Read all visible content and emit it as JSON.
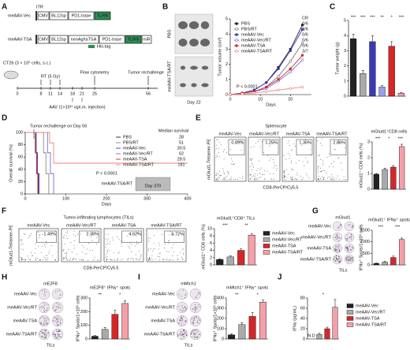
{
  "panel_labels": [
    "A",
    "B",
    "C",
    "D",
    "E",
    "F",
    "G",
    "H",
    "I",
    "J"
  ],
  "panel_a": {
    "constructs": [
      {
        "name": "meAAV-Vec",
        "parts": [
          "CMV",
          "BL12sp",
          "PD1-trase",
          "TLR9i"
        ]
      },
      {
        "name": "meAAV-TSA",
        "parts": [
          "CMV",
          "BL12sp",
          "neoAg/taTSA",
          "PD1-trase",
          "TLR9i"
        ]
      }
    ],
    "itr": "ITR",
    "mir": "miR",
    "his_tag": "His-tag",
    "cells": "CT26 (3 × 10⁶ cells, s.c.)",
    "rt": "RT (5 Gy)",
    "flow": "Flow cytometry",
    "rechallenge": "Tumor rechallenge",
    "days": [
      "0",
      "8",
      "11",
      "14",
      "18",
      "21",
      "25",
      "56"
    ],
    "aav": "AAV (1×10¹¹ vg/i.m. injection)"
  },
  "panel_b": {
    "groups": [
      "PBS",
      "meAAV-TSA/RT"
    ],
    "day": "Day 22"
  },
  "panel_d": {
    "inset_label": "meAAV-TSA/RT",
    "inset_day": "Day 370"
  },
  "flow_e": {
    "header": "Splenocyte",
    "xlabel": "CD8-PerCP/Cy5.5",
    "ylabel": "mGlud1-Tetramer-PE",
    "panels": [
      {
        "label": "meAAV-Vec",
        "percent": "0.89%"
      },
      {
        "label": "meAAV-Vec/RT",
        "percent": "1.25%"
      },
      {
        "label": "meAAV-TSA",
        "percent": "1.36%"
      },
      {
        "label": "meAAV-TSA/RT",
        "percent": "2.86%"
      }
    ]
  },
  "flow_f": {
    "header": "Tumor-infiltrating lymphocytes (TILs)",
    "xlabel": "CD8-PerCP/Cy5.5",
    "ylabel": "mGlud1-Tetramer-PE",
    "panels": [
      {
        "label": "meAAV-Vec",
        "percent": "1.49%"
      },
      {
        "label": "meAAV-Vec/RT",
        "percent": "2.38%"
      },
      {
        "label": "meAAV-TSA",
        "percent": "4.62%"
      },
      {
        "label": "meAAV-TSA/RT",
        "percent": "6.72%"
      }
    ]
  },
  "wells_g": {
    "header": "mGlud1",
    "rows": [
      "meAAV-Vec",
      "meAAV-Vec/RT",
      "meAAV-TSA",
      "meAAV-TSA/RT"
    ],
    "footer": "TILs"
  },
  "wells_h": {
    "header": "mE2F8",
    "rows": [
      "meAAV-Vec",
      "meAAV-Vec/RT",
      "meAAV-TSA",
      "meAAV-TSA/RT"
    ],
    "footer": "TILs"
  },
  "wells_i": {
    "header": "mMtch1",
    "rows": [
      "meAAV-Vec",
      "meAAV-Vec/RT",
      "meAAV-TSA",
      "meAAV-TSA/RT"
    ],
    "footer": "TILs"
  },
  "chart_data": [
    {
      "type": "line",
      "markers": true,
      "x": [
        0,
        4,
        8,
        12,
        16,
        20,
        24
      ],
      "xlim": [
        0,
        27
      ],
      "xticks": [
        0,
        10,
        20
      ],
      "ylim": [
        0,
        5
      ],
      "yticks": [
        0,
        1,
        2,
        3,
        4,
        5
      ],
      "ylabel": "Tumor volume (cm³)",
      "xlabel": "Days",
      "cr_header": "CR",
      "annotations": [
        "P < 0.0001"
      ],
      "series": [
        {
          "name": "PBS",
          "color": "#222222",
          "filled": true,
          "cr": "0/6",
          "values": [
            0,
            0.1,
            0.3,
            0.8,
            1.8,
            3.0,
            4.6
          ]
        },
        {
          "name": "PBS/RT",
          "color": "#777777",
          "filled": false,
          "cr": "0/6",
          "values": [
            0,
            0.1,
            0.2,
            0.5,
            1.2,
            2.2,
            3.4
          ]
        },
        {
          "name": "meAAV-Vec",
          "color": "#3a3ab5",
          "filled": true,
          "cr": "0/6",
          "values": [
            0,
            0.1,
            0.3,
            0.8,
            1.7,
            2.9,
            4.3
          ]
        },
        {
          "name": "meAAV-Vec/RT",
          "color": "#6f6fdc",
          "filled": false,
          "cr": "0/6",
          "values": [
            0,
            0.1,
            0.2,
            0.4,
            0.9,
            1.5,
            2.3
          ]
        },
        {
          "name": "meAAV-TSA",
          "color": "#d62728",
          "filled": true,
          "cr": "0/6",
          "values": [
            0,
            0.1,
            0.2,
            0.5,
            1.0,
            1.7,
            2.6
          ]
        },
        {
          "name": "meAAV-TSA/RT",
          "color": "#f08080",
          "filled": false,
          "cr": "3/7",
          "values": [
            0,
            0.05,
            0.1,
            0.2,
            0.3,
            0.4,
            0.5
          ]
        }
      ]
    },
    {
      "type": "bar",
      "categories": [
        null,
        null,
        null,
        null,
        null,
        null
      ],
      "values": [
        3.8,
        1.5,
        3.6,
        0.6,
        3.3,
        0.2
      ],
      "errors": [
        0.3,
        0.2,
        0.4,
        0.1,
        0.3,
        0.05
      ],
      "colors": [
        "#222222",
        "#aaaaaa",
        "#3a3ab5",
        "#9d9de8",
        "#d62728",
        "#f4a0a8"
      ],
      "ylim": [
        0,
        5
      ],
      "yticks": [
        0,
        1,
        2,
        3,
        4,
        5
      ],
      "ylabel": "Tumor weight (g)",
      "annotations": [
        "***",
        "***",
        "***",
        "**",
        "*",
        "***"
      ]
    },
    {
      "type": "line",
      "markers": false,
      "xlim": [
        0,
        400
      ],
      "xticks": [
        0,
        100,
        200,
        300,
        400
      ],
      "ylim": [
        0,
        100
      ],
      "yticks": [
        0,
        20,
        40,
        60,
        80,
        100
      ],
      "ylabel": "Overall survival (%)",
      "xlabel": "Days",
      "median_header": "Median survival",
      "annotations": [
        "Tumor rechallenge on Day 56",
        "P < 0.0001"
      ],
      "series": [
        {
          "name": "PBS",
          "color": "#222222",
          "median": "28",
          "x": [
            0,
            25,
            25,
            28,
            28,
            32,
            32
          ],
          "values": [
            100,
            100,
            67,
            67,
            33,
            33,
            0
          ]
        },
        {
          "name": "PBS/RT",
          "color": "#888888",
          "median": "51",
          "x": [
            0,
            45,
            45,
            51,
            51,
            58,
            58
          ],
          "values": [
            100,
            100,
            67,
            67,
            33,
            33,
            0
          ]
        },
        {
          "name": "meAAV-Vec",
          "color": "#3a3ab5",
          "median": "30.5",
          "x": [
            0,
            27,
            27,
            30,
            30,
            34,
            34
          ],
          "values": [
            100,
            100,
            67,
            67,
            33,
            33,
            0
          ]
        },
        {
          "name": "meAAV-Vec/RT",
          "color": "#6f6fdc",
          "median": "62",
          "x": [
            0,
            55,
            55,
            62,
            62,
            70,
            70
          ],
          "values": [
            100,
            100,
            67,
            67,
            33,
            33,
            0
          ]
        },
        {
          "name": "meAAV-TSA",
          "color": "#d62728",
          "median": "28.5",
          "x": [
            0,
            26,
            26,
            28,
            28,
            31,
            31
          ],
          "values": [
            100,
            100,
            67,
            67,
            33,
            33,
            0
          ]
        },
        {
          "name": "meAAV-TSA/RT",
          "color": "#f08080",
          "median": "181",
          "x": [
            0,
            60,
            60,
            70,
            70,
            400
          ],
          "values": [
            100,
            100,
            83,
            83,
            50,
            50
          ]
        }
      ]
    },
    {
      "type": "bar",
      "title": "mGlud1⁺CD8 cells",
      "categories": [
        null,
        null,
        null,
        null
      ],
      "values": [
        0.95,
        1.25,
        1.4,
        2.7
      ],
      "errors": [
        0.05,
        0.08,
        0.1,
        0.15
      ],
      "colors": [
        "#222222",
        "#aaaaaa",
        "#d62728",
        "#f4a0a8"
      ],
      "ylim": [
        0,
        3
      ],
      "yticks": [
        0,
        1,
        2,
        3
      ],
      "ylabel": "mGlud1⁺ CD8 cells (%)",
      "annotations": [
        "***",
        "*",
        "***"
      ]
    },
    {
      "type": "bar",
      "title": "mGlud1⁺CD8⁺ TILs",
      "categories": [
        null,
        null,
        null,
        null
      ],
      "values": [
        1.5,
        2.2,
        4.0,
        8.2
      ],
      "errors": [
        0.2,
        0.3,
        0.4,
        0.4
      ],
      "colors": [
        "#222222",
        "#aaaaaa",
        "#d62728",
        "#f4a0a8"
      ],
      "ylim": [
        0,
        10
      ],
      "yticks": [
        0,
        2,
        4,
        6,
        8,
        10
      ],
      "ylabel": "mGlud1⁺ CD8 cells (%)",
      "legend": [
        "meAAV-Vec",
        "meAAV-Vec/RT",
        "meAAV-TSA",
        "meAAV-TSA/RT"
      ],
      "annotations": [
        "***",
        "**"
      ]
    },
    {
      "type": "bar",
      "title": "mGlud1⁺ IFNγ⁺ spots",
      "categories": [
        null,
        null,
        null,
        null
      ],
      "values": [
        60,
        120,
        320,
        1100
      ],
      "errors": [
        20,
        30,
        60,
        60
      ],
      "colors": [
        "#222222",
        "#aaaaaa",
        "#d62728",
        "#f4a0a8"
      ],
      "ylim": [
        0,
        1500
      ],
      "yticks": [
        0,
        500,
        1000,
        1500
      ],
      "ylabel": "IFNγ⁺ Spots/1×10⁶ cells",
      "annotations": [
        "***",
        "***"
      ]
    },
    {
      "type": "bar",
      "title": "mE2F8⁺ IFNγ⁺ spots",
      "categories": [
        null,
        null,
        null,
        null
      ],
      "values": [
        20,
        70,
        180,
        260
      ],
      "errors": [
        5,
        15,
        30,
        20
      ],
      "colors": [
        "#222222",
        "#aaaaaa",
        "#d62728",
        "#f4a0a8"
      ],
      "ylim": [
        0,
        300
      ],
      "yticks": [
        0,
        100,
        200,
        300
      ],
      "ylabel": "IFNγ⁺ Spots/1×10⁶ cells",
      "annotations": [
        "**",
        "*"
      ]
    },
    {
      "type": "bar",
      "title": "mMtch1⁺ IFNγ⁺ spots",
      "categories": [
        null,
        null,
        null,
        null
      ],
      "values": [
        40,
        140,
        220,
        360
      ],
      "errors": [
        10,
        20,
        40,
        20
      ],
      "colors": [
        "#222222",
        "#aaaaaa",
        "#d62728",
        "#f4a0a8"
      ],
      "ylim": [
        0,
        400
      ],
      "yticks": [
        0,
        100,
        200,
        300,
        400
      ],
      "ylabel": "IFNγ⁺ Spots/1×10⁶ cells",
      "annotations": [
        "**",
        "*"
      ]
    },
    {
      "type": "bar",
      "categories": [
        null,
        null,
        null,
        null
      ],
      "values": [
        null,
        9,
        20,
        62
      ],
      "errors": [
        null,
        2,
        3,
        15
      ],
      "nd_label": "N.D",
      "colors": [
        "#222222",
        "#aaaaaa",
        "#d62728",
        "#f4a0a8"
      ],
      "ylim": [
        0,
        80
      ],
      "yticks": [
        0,
        20,
        40,
        60,
        80
      ],
      "ylabel": "IFNγ (pg/mL)",
      "legend": [
        "meAAV-Vec",
        "meAAV-Vec/RT",
        "meAAV-TSA",
        "meAAV-TSA/RT"
      ],
      "annotations": [
        "*"
      ]
    }
  ]
}
